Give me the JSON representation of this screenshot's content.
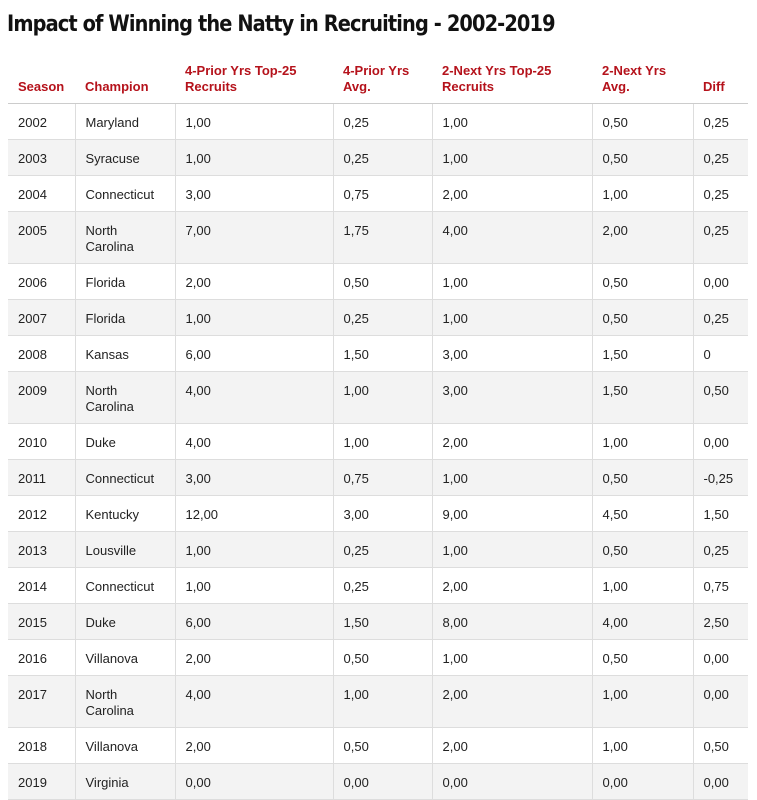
{
  "header": {
    "title": "Impact of Winning the Natty in Recruiting - 2002-2019"
  },
  "table": {
    "columns": [
      "Season",
      "Champion",
      "4-Prior Yrs Top-25 Recruits",
      "4-Prior Yrs Avg.",
      "2-Next Yrs Top-25 Recruits",
      "2-Next Yrs Avg.",
      "Diff"
    ],
    "rows": [
      [
        "2002",
        "Maryland",
        "1,00",
        "0,25",
        "1,00",
        "0,50",
        "0,25"
      ],
      [
        "2003",
        "Syracuse",
        "1,00",
        "0,25",
        "1,00",
        "0,50",
        "0,25"
      ],
      [
        "2004",
        "Connecticut",
        "3,00",
        "0,75",
        "2,00",
        "1,00",
        "0,25"
      ],
      [
        "2005",
        "North Carolina",
        "7,00",
        "1,75",
        "4,00",
        "2,00",
        "0,25"
      ],
      [
        "2006",
        "Florida",
        "2,00",
        "0,50",
        "1,00",
        "0,50",
        "0,00"
      ],
      [
        "2007",
        "Florida",
        "1,00",
        "0,25",
        "1,00",
        "0,50",
        "0,25"
      ],
      [
        "2008",
        "Kansas",
        "6,00",
        "1,50",
        "3,00",
        "1,50",
        "0"
      ],
      [
        "2009",
        "North Carolina",
        "4,00",
        "1,00",
        "3,00",
        "1,50",
        "0,50"
      ],
      [
        "2010",
        "Duke",
        "4,00",
        "1,00",
        "2,00",
        "1,00",
        "0,00"
      ],
      [
        "2011",
        "Connecticut",
        "3,00",
        "0,75",
        "1,00",
        "0,50",
        "-0,25"
      ],
      [
        "2012",
        "Kentucky",
        "12,00",
        "3,00",
        "9,00",
        "4,50",
        "1,50"
      ],
      [
        "2013",
        "Lousville",
        "1,00",
        "0,25",
        "1,00",
        "0,50",
        "0,25"
      ],
      [
        "2014",
        "Connecticut",
        "1,00",
        "0,25",
        "2,00",
        "1,00",
        "0,75"
      ],
      [
        "2015",
        "Duke",
        "6,00",
        "1,50",
        "8,00",
        "4,00",
        "2,50"
      ],
      [
        "2016",
        "Villanova",
        "2,00",
        "0,50",
        "1,00",
        "0,50",
        "0,00"
      ],
      [
        "2017",
        "North Carolina",
        "4,00",
        "1,00",
        "2,00",
        "1,00",
        "0,00"
      ],
      [
        "2018",
        "Villanova",
        "2,00",
        "0,50",
        "2,00",
        "1,00",
        "0,50"
      ],
      [
        "2019",
        "Virginia",
        "0,00",
        "0,00",
        "0,00",
        "0,00",
        "0,00"
      ]
    ]
  }
}
